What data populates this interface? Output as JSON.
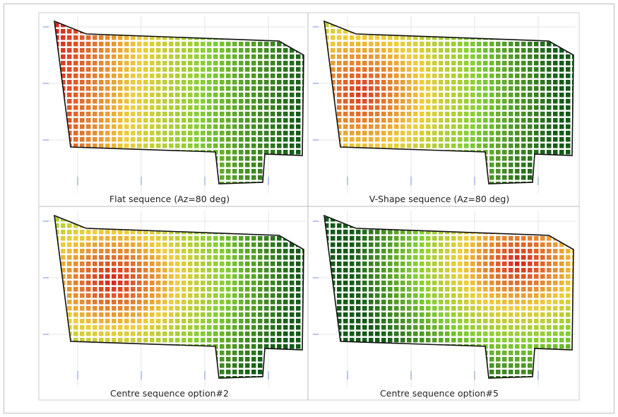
{
  "panels": [
    {
      "caption": "Flat sequence (Az=80 deg)"
    },
    {
      "caption": "V-Shape sequence (Az=80 deg)"
    },
    {
      "caption": "Centre sequence option#2"
    },
    {
      "caption": "Centre sequence option#5"
    }
  ]
}
